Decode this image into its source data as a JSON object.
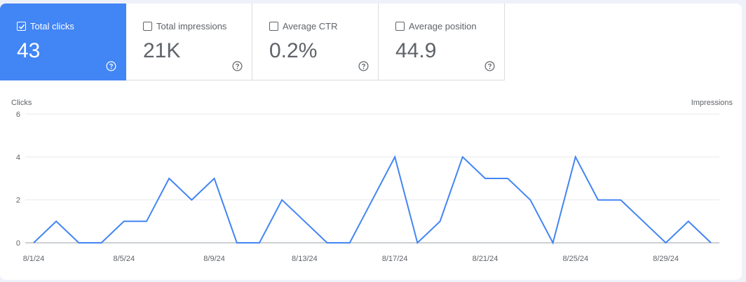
{
  "metrics": [
    {
      "label": "Total clicks",
      "value": "43",
      "selected": true
    },
    {
      "label": "Total impressions",
      "value": "21K",
      "selected": false
    },
    {
      "label": "Average CTR",
      "value": "0.2%",
      "selected": false
    },
    {
      "label": "Average position",
      "value": "44.9",
      "selected": false
    }
  ],
  "icons": {
    "checkbox": "checkbox-icon",
    "help": "help-circle-icon"
  },
  "colors": {
    "accent": "#4285f4",
    "line": "#4285f4"
  },
  "chart_data": {
    "type": "line",
    "ylabel_left": "Clicks",
    "ylabel_right": "Impressions",
    "ylim": [
      0,
      6
    ],
    "yticks": [
      0,
      2,
      4,
      6
    ],
    "x": [
      "8/1/24",
      "8/2/24",
      "8/3/24",
      "8/4/24",
      "8/5/24",
      "8/6/24",
      "8/7/24",
      "8/8/24",
      "8/9/24",
      "8/10/24",
      "8/11/24",
      "8/12/24",
      "8/13/24",
      "8/14/24",
      "8/15/24",
      "8/16/24",
      "8/17/24",
      "8/18/24",
      "8/19/24",
      "8/20/24",
      "8/21/24",
      "8/22/24",
      "8/23/24",
      "8/24/24",
      "8/25/24",
      "8/26/24",
      "8/27/24",
      "8/28/24",
      "8/29/24",
      "8/30/24",
      "8/31/24"
    ],
    "xtick_labels": [
      "8/1/24",
      "8/5/24",
      "8/9/24",
      "8/13/24",
      "8/17/24",
      "8/21/24",
      "8/25/24",
      "8/29/24"
    ],
    "series": [
      {
        "values": [
          0,
          1,
          0,
          0,
          1,
          1,
          3,
          2,
          3,
          0,
          0,
          2,
          1,
          0,
          0,
          2,
          4,
          0,
          1,
          4,
          3,
          3,
          2,
          0,
          4,
          2,
          2,
          1,
          0,
          1,
          0
        ]
      }
    ],
    "grid": true
  }
}
